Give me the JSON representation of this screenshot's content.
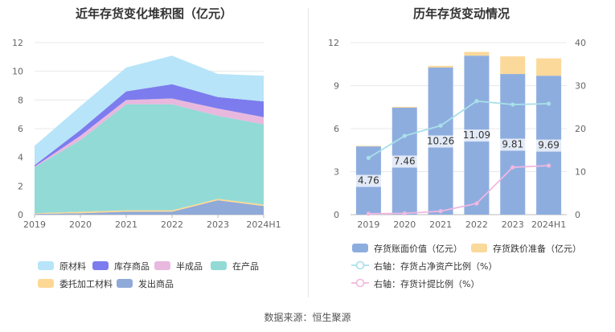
{
  "left_chart": {
    "title": "近年存货变化堆积图（亿元）",
    "chart_data": {
      "type": "area",
      "stacked": true,
      "categories": [
        "2019",
        "2020",
        "2021",
        "2022",
        "2023",
        "2024H1"
      ],
      "ylim": [
        0,
        12
      ],
      "yticks": [
        "0",
        "2",
        "4",
        "6",
        "8",
        "10",
        "12"
      ],
      "grid": true,
      "legend_position": "bottom",
      "series": [
        {
          "name": "发出商品",
          "color": "#8fa9d8",
          "values": [
            0.05,
            0.1,
            0.2,
            0.2,
            1.0,
            0.6
          ]
        },
        {
          "name": "委托加工材料",
          "color": "#fcd894",
          "values": [
            0.05,
            0.1,
            0.1,
            0.1,
            0.1,
            0.1
          ]
        },
        {
          "name": "在产品",
          "color": "#92dad6",
          "values": [
            3.2,
            5.0,
            7.4,
            7.4,
            5.8,
            5.6
          ]
        },
        {
          "name": "半成品",
          "color": "#e8b8de",
          "values": [
            0.05,
            0.3,
            0.3,
            0.4,
            0.5,
            0.5
          ]
        },
        {
          "name": "库存商品",
          "color": "#7c7cee",
          "values": [
            0.1,
            0.4,
            0.6,
            1.0,
            0.8,
            1.1
          ]
        },
        {
          "name": "原材料",
          "color": "#b7e4f8",
          "values": [
            1.35,
            1.66,
            1.66,
            1.99,
            1.61,
            1.79
          ]
        }
      ]
    },
    "legend": [
      {
        "name": "原材料",
        "color": "#b7e4f8"
      },
      {
        "name": "库存商品",
        "color": "#7c7cee"
      },
      {
        "name": "半成品",
        "color": "#e8b8de"
      },
      {
        "name": "在产品",
        "color": "#92dad6"
      },
      {
        "name": "委托加工材料",
        "color": "#fcd894"
      },
      {
        "name": "发出商品",
        "color": "#8fa9d8"
      }
    ]
  },
  "right_chart": {
    "title": "历年存货变动情况",
    "chart_data": {
      "type": "bar",
      "stacked": true,
      "categories": [
        "2019",
        "2020",
        "2021",
        "2022",
        "2023",
        "2024H1"
      ],
      "ylim_left": [
        0,
        12
      ],
      "yticks_left": [
        "0",
        "3",
        "6",
        "9",
        "12"
      ],
      "ylim_right": [
        0,
        40
      ],
      "yticks_right": [
        "0",
        "10",
        "20",
        "30",
        "40"
      ],
      "legend_position": "bottom",
      "series": [
        {
          "name": "存货账面价值（亿元）",
          "type": "bar",
          "axis": "left",
          "color": "#8eaddf",
          "values": [
            4.76,
            7.46,
            10.26,
            11.09,
            9.81,
            9.69
          ],
          "labels": [
            "4.76",
            "7.46",
            "10.26",
            "11.09",
            "9.81",
            "9.69"
          ]
        },
        {
          "name": "存货跌价准备（亿元）",
          "type": "bar",
          "axis": "left",
          "color": "#fbd99a",
          "values": [
            0.04,
            0.06,
            0.12,
            0.26,
            1.23,
            1.21
          ]
        },
        {
          "name": "右轴：存货占净资产比例（%）",
          "type": "line",
          "axis": "right",
          "color": "#a8e0e8",
          "values": [
            13.2,
            18.3,
            20.7,
            26.4,
            25.6,
            25.8
          ]
        },
        {
          "name": "右轴：存货计提比例（%）",
          "type": "line",
          "axis": "right",
          "color": "#f1b8e0",
          "values": [
            0.2,
            0.3,
            0.8,
            2.6,
            11.0,
            11.4
          ]
        }
      ]
    }
  },
  "source": "数据来源：恒生聚源"
}
